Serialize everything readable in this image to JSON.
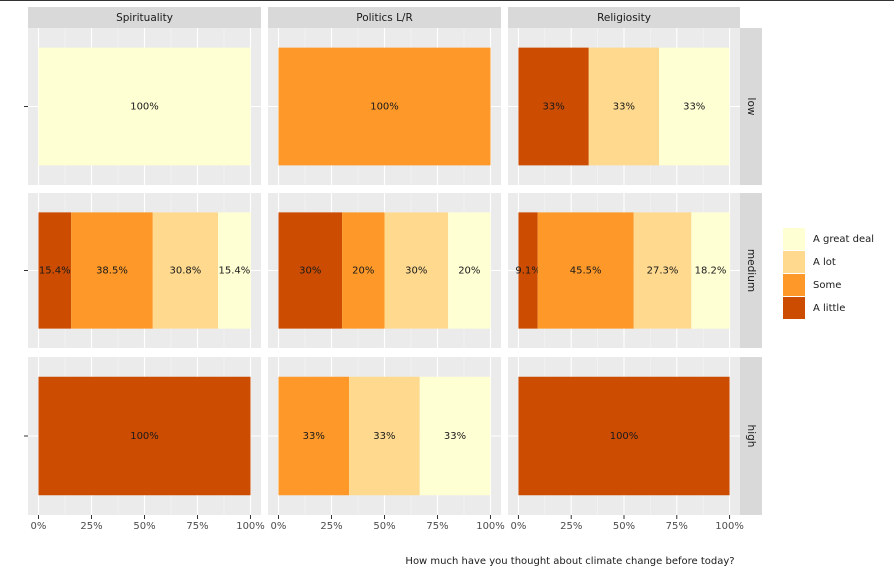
{
  "chart_data": {
    "type": "bar",
    "orientation": "horizontal",
    "stacked": true,
    "x_label": "How much have you thought about climate change before today?",
    "columns": [
      "Spirituality",
      "Politics L/R",
      "Religiosity"
    ],
    "rows": [
      "low",
      "medium",
      "high"
    ],
    "series": [
      {
        "name": "A great deal",
        "color": "#ffffd4"
      },
      {
        "name": "A lot",
        "color": "#fed98e"
      },
      {
        "name": "Some",
        "color": "#fe9929"
      },
      {
        "name": "A little",
        "color": "#cc4c02"
      }
    ],
    "panels": [
      {
        "values": [
          100,
          null,
          null,
          null
        ],
        "value_labels": [
          "100%",
          null,
          null,
          null
        ]
      },
      {
        "values": [
          null,
          null,
          100,
          null
        ],
        "value_labels": [
          null,
          null,
          "100%",
          null
        ]
      },
      {
        "values": [
          33.3,
          33.3,
          null,
          33.3
        ],
        "value_labels": [
          "33%",
          "33%",
          null,
          "33%"
        ]
      },
      {
        "values": [
          15.4,
          30.8,
          38.5,
          15.4
        ],
        "value_labels": [
          "15.4%",
          "30.8%",
          "38.5%",
          "15.4%"
        ]
      },
      {
        "values": [
          20,
          30,
          20,
          30
        ],
        "value_labels": [
          "20%",
          "30%",
          "20%",
          "30%"
        ]
      },
      {
        "values": [
          18.2,
          27.3,
          45.5,
          9.1
        ],
        "value_labels": [
          "18.2%",
          "27.3%",
          "45.5%",
          "9.1%"
        ]
      },
      {
        "values": [
          null,
          null,
          null,
          100
        ],
        "value_labels": [
          null,
          null,
          null,
          "100%"
        ]
      },
      {
        "values": [
          33.3,
          33.3,
          33.3,
          null
        ],
        "value_labels": [
          "33%",
          "33%",
          "33%",
          null
        ]
      },
      {
        "values": [
          null,
          null,
          null,
          100
        ],
        "value_labels": [
          null,
          null,
          null,
          "100%"
        ]
      }
    ],
    "xlim": [
      0,
      100
    ],
    "xticks": [
      {
        "value": 0,
        "label": "0%"
      },
      {
        "value": 25,
        "label": "25%"
      },
      {
        "value": 50,
        "label": "50%"
      },
      {
        "value": 75,
        "label": "75%"
      },
      {
        "value": 100,
        "label": "100%"
      }
    ],
    "grid": true,
    "legend": "right"
  }
}
